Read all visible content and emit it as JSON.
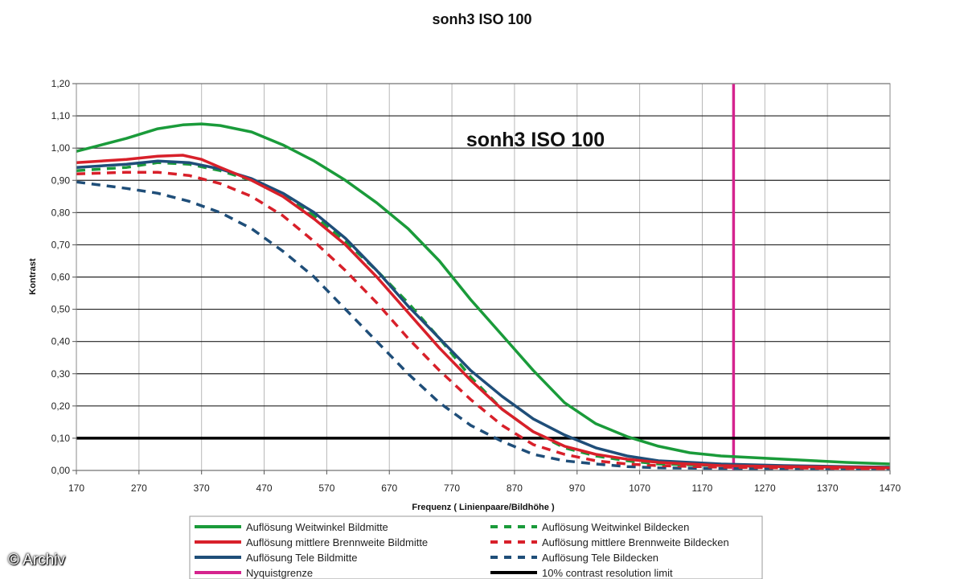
{
  "watermark": "© Archiv",
  "chart_data": {
    "type": "line",
    "title": "sonh3 ISO 100",
    "inner_title": "sonh3 ISO 100",
    "xlabel": "Frequenz ( Linienpaare/Bildhöhe )",
    "ylabel": "Kontrast",
    "xlim": [
      170,
      1470
    ],
    "ylim": [
      0,
      1.2
    ],
    "x_ticks": [
      "170",
      "270",
      "370",
      "470",
      "570",
      "670",
      "770",
      "870",
      "970",
      "1070",
      "1170",
      "1270",
      "1370",
      "1470"
    ],
    "y_ticks": [
      "0,00",
      "0,10",
      "0,20",
      "0,30",
      "0,40",
      "0,50",
      "0,60",
      "0,70",
      "0,80",
      "0,90",
      "1,00",
      "1,10",
      "1,20"
    ],
    "grid": "horizontal and vertical",
    "legend_position": "bottom",
    "series": [
      {
        "name": "Auflösung Weitwinkel Bildmitte",
        "color": "#1a9b3a",
        "style": "solid",
        "x": [
          170,
          200,
          250,
          300,
          340,
          370,
          400,
          450,
          500,
          550,
          600,
          650,
          700,
          750,
          800,
          850,
          900,
          950,
          1000,
          1050,
          1100,
          1150,
          1200,
          1250,
          1300,
          1350,
          1400,
          1470
        ],
        "y": [
          0.99,
          1.005,
          1.03,
          1.06,
          1.072,
          1.075,
          1.07,
          1.05,
          1.01,
          0.96,
          0.9,
          0.83,
          0.75,
          0.65,
          0.53,
          0.42,
          0.31,
          0.21,
          0.145,
          0.105,
          0.075,
          0.055,
          0.045,
          0.04,
          0.035,
          0.03,
          0.025,
          0.02
        ]
      },
      {
        "name": "Auflösung Weitwinkel Bildecken",
        "color": "#1a9b3a",
        "style": "dashed",
        "x": [
          170,
          250,
          300,
          350,
          400,
          450,
          500,
          550,
          600,
          650,
          700,
          750,
          800,
          850,
          900,
          950,
          1000,
          1050,
          1100,
          1200,
          1300,
          1400,
          1470
        ],
        "y": [
          0.93,
          0.94,
          0.955,
          0.95,
          0.93,
          0.9,
          0.86,
          0.79,
          0.71,
          0.62,
          0.52,
          0.41,
          0.29,
          0.19,
          0.12,
          0.07,
          0.045,
          0.03,
          0.02,
          0.015,
          0.012,
          0.01,
          0.01
        ]
      },
      {
        "name": "Auflösung mittlere Brennweite Bildmitte",
        "color": "#d8202a",
        "style": "solid",
        "x": [
          170,
          250,
          300,
          340,
          370,
          400,
          450,
          500,
          550,
          600,
          650,
          700,
          750,
          800,
          850,
          900,
          950,
          1000,
          1050,
          1100,
          1200,
          1300,
          1400,
          1470
        ],
        "y": [
          0.955,
          0.965,
          0.975,
          0.978,
          0.965,
          0.94,
          0.9,
          0.85,
          0.78,
          0.7,
          0.6,
          0.49,
          0.38,
          0.28,
          0.19,
          0.12,
          0.075,
          0.05,
          0.035,
          0.025,
          0.015,
          0.012,
          0.01,
          0.008
        ]
      },
      {
        "name": "Auflösung mittlere Brennweite Bildecken",
        "color": "#d8202a",
        "style": "dashed",
        "x": [
          170,
          250,
          300,
          350,
          400,
          450,
          500,
          550,
          600,
          650,
          700,
          750,
          800,
          850,
          900,
          950,
          1000,
          1050,
          1100,
          1200,
          1300,
          1400,
          1470
        ],
        "y": [
          0.92,
          0.925,
          0.925,
          0.915,
          0.89,
          0.85,
          0.79,
          0.71,
          0.62,
          0.52,
          0.41,
          0.31,
          0.22,
          0.14,
          0.08,
          0.05,
          0.03,
          0.02,
          0.015,
          0.01,
          0.008,
          0.006,
          0.005
        ]
      },
      {
        "name": "Auflösung Tele Bildmitte",
        "color": "#1f4e79",
        "style": "solid",
        "x": [
          170,
          250,
          300,
          350,
          400,
          450,
          500,
          550,
          600,
          650,
          700,
          750,
          800,
          850,
          900,
          950,
          1000,
          1050,
          1100,
          1200,
          1300,
          1400,
          1470
        ],
        "y": [
          0.94,
          0.95,
          0.96,
          0.955,
          0.935,
          0.905,
          0.86,
          0.8,
          0.72,
          0.62,
          0.51,
          0.41,
          0.31,
          0.23,
          0.16,
          0.11,
          0.07,
          0.045,
          0.03,
          0.02,
          0.015,
          0.012,
          0.01
        ]
      },
      {
        "name": "Auflösung Tele Bildecken",
        "color": "#1f4e79",
        "style": "dashed",
        "x": [
          170,
          250,
          300,
          350,
          400,
          450,
          500,
          550,
          600,
          650,
          700,
          750,
          800,
          850,
          900,
          950,
          1000,
          1050,
          1100,
          1200,
          1300,
          1400,
          1470
        ],
        "y": [
          0.895,
          0.875,
          0.86,
          0.835,
          0.8,
          0.75,
          0.68,
          0.6,
          0.5,
          0.4,
          0.3,
          0.21,
          0.14,
          0.09,
          0.05,
          0.03,
          0.02,
          0.012,
          0.008,
          0.006,
          0.005,
          0.004,
          0.004
        ]
      },
      {
        "name": "Nyquistgrenze",
        "color": "#d5238e",
        "style": "solid",
        "x": [
          1220,
          1220
        ],
        "y": [
          0,
          1.2
        ]
      },
      {
        "name": "10% contrast resolution limit",
        "color": "#000000",
        "style": "solid",
        "x": [
          170,
          1470
        ],
        "y": [
          0.1,
          0.1
        ]
      }
    ]
  }
}
